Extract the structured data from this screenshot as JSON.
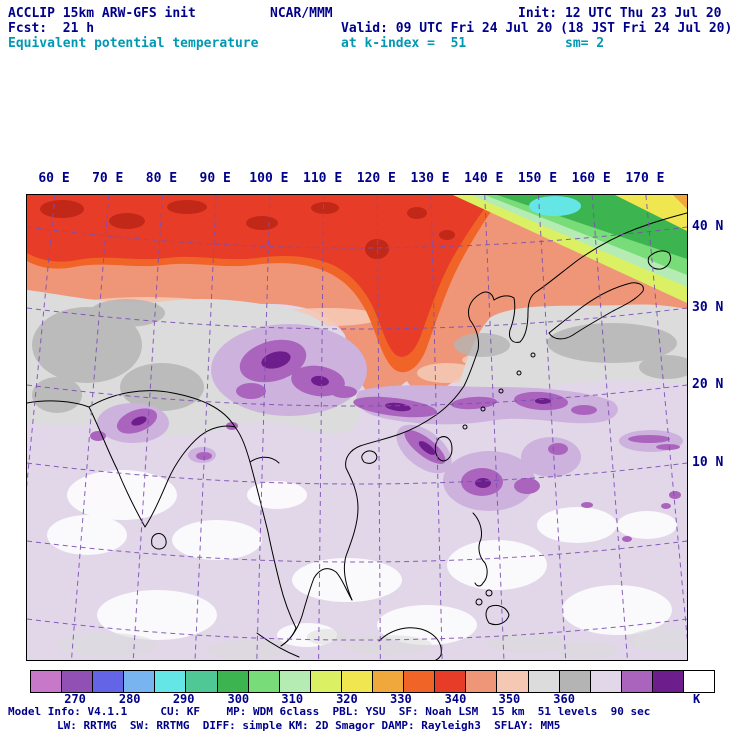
{
  "colors": {
    "navy": "#00008b",
    "cyan": "#0099b4"
  },
  "header": {
    "line1_left": "ACCLIP 15km ARW-GFS init",
    "line1_center": "NCAR/MMM",
    "line1_right": "Init: 12 UTC Thu 23 Jul 20",
    "line2_left": "Fcst:  21 h",
    "line2_right": "Valid: 09 UTC Fri 24 Jul 20 (18 JST Fri 24 Jul 20)",
    "line3_left": "Equivalent potential temperature",
    "line3_mid": "at k-index =  51",
    "line3_right": "sm= 2"
  },
  "axes": {
    "lon_labels": [
      "60 E",
      "70 E",
      "80 E",
      "90 E",
      "100 E",
      "110 E",
      "120 E",
      "130 E",
      "140 E",
      "150 E",
      "160 E",
      "170 E"
    ],
    "lat_labels": [
      "40 N",
      "30 N",
      "20 N",
      "10 N"
    ]
  },
  "colorbar": {
    "unit": "K",
    "unit_position_pct": 97.6,
    "tick_labels": [
      "270",
      "280",
      "290",
      "300",
      "310",
      "320",
      "330",
      "340",
      "350",
      "360"
    ],
    "tick_positions_pct": [
      6.6,
      14.6,
      22.5,
      30.5,
      38.4,
      46.4,
      54.3,
      62.3,
      70.2,
      78.2
    ],
    "colors": [
      "#c878c8",
      "#9050b4",
      "#6464e6",
      "#78b4f0",
      "#64e6e6",
      "#50c896",
      "#3cb450",
      "#78dc78",
      "#b4ecb4",
      "#dcf064",
      "#f0e650",
      "#f0a83c",
      "#f06428",
      "#e63c28",
      "#f09678",
      "#f5c8b4",
      "#dcdcdc",
      "#b4b4b4",
      "#e1d7e9",
      "#aa64be",
      "#6e1e8c",
      "#ffffff"
    ]
  },
  "map": {
    "extra_colors": {
      "dark_red": "#c22818",
      "light_purple": "#cdb2dd",
      "grid": "#7d4fb5",
      "coast": "#000000"
    }
  },
  "footer": {
    "line1": "Model Info: V4.1.1     CU: KF    MP: WDM 6class  PBL: YSU  SF: Noah LSM  15 km  51 levels  90 sec",
    "line2": "LW: RRTMG  SW: RRTMG  DIFF: simple KM: 2D Smagor DAMP: Rayleigh3  SFLAY: MM5"
  },
  "chart_data": {
    "type": "heatmap",
    "title": "Equivalent potential temperature",
    "units": "K",
    "colorbar_ticks": [
      270,
      280,
      290,
      300,
      310,
      320,
      330,
      340,
      350,
      360
    ],
    "x_ticks": [
      "60 E",
      "70 E",
      "80 E",
      "90 E",
      "100 E",
      "110 E",
      "120 E",
      "130 E",
      "140 E",
      "150 E",
      "160 E",
      "170 E"
    ],
    "y_ticks": [
      "40 N",
      "30 N",
      "20 N",
      "10 N"
    ],
    "legend_position": "bottom"
  }
}
